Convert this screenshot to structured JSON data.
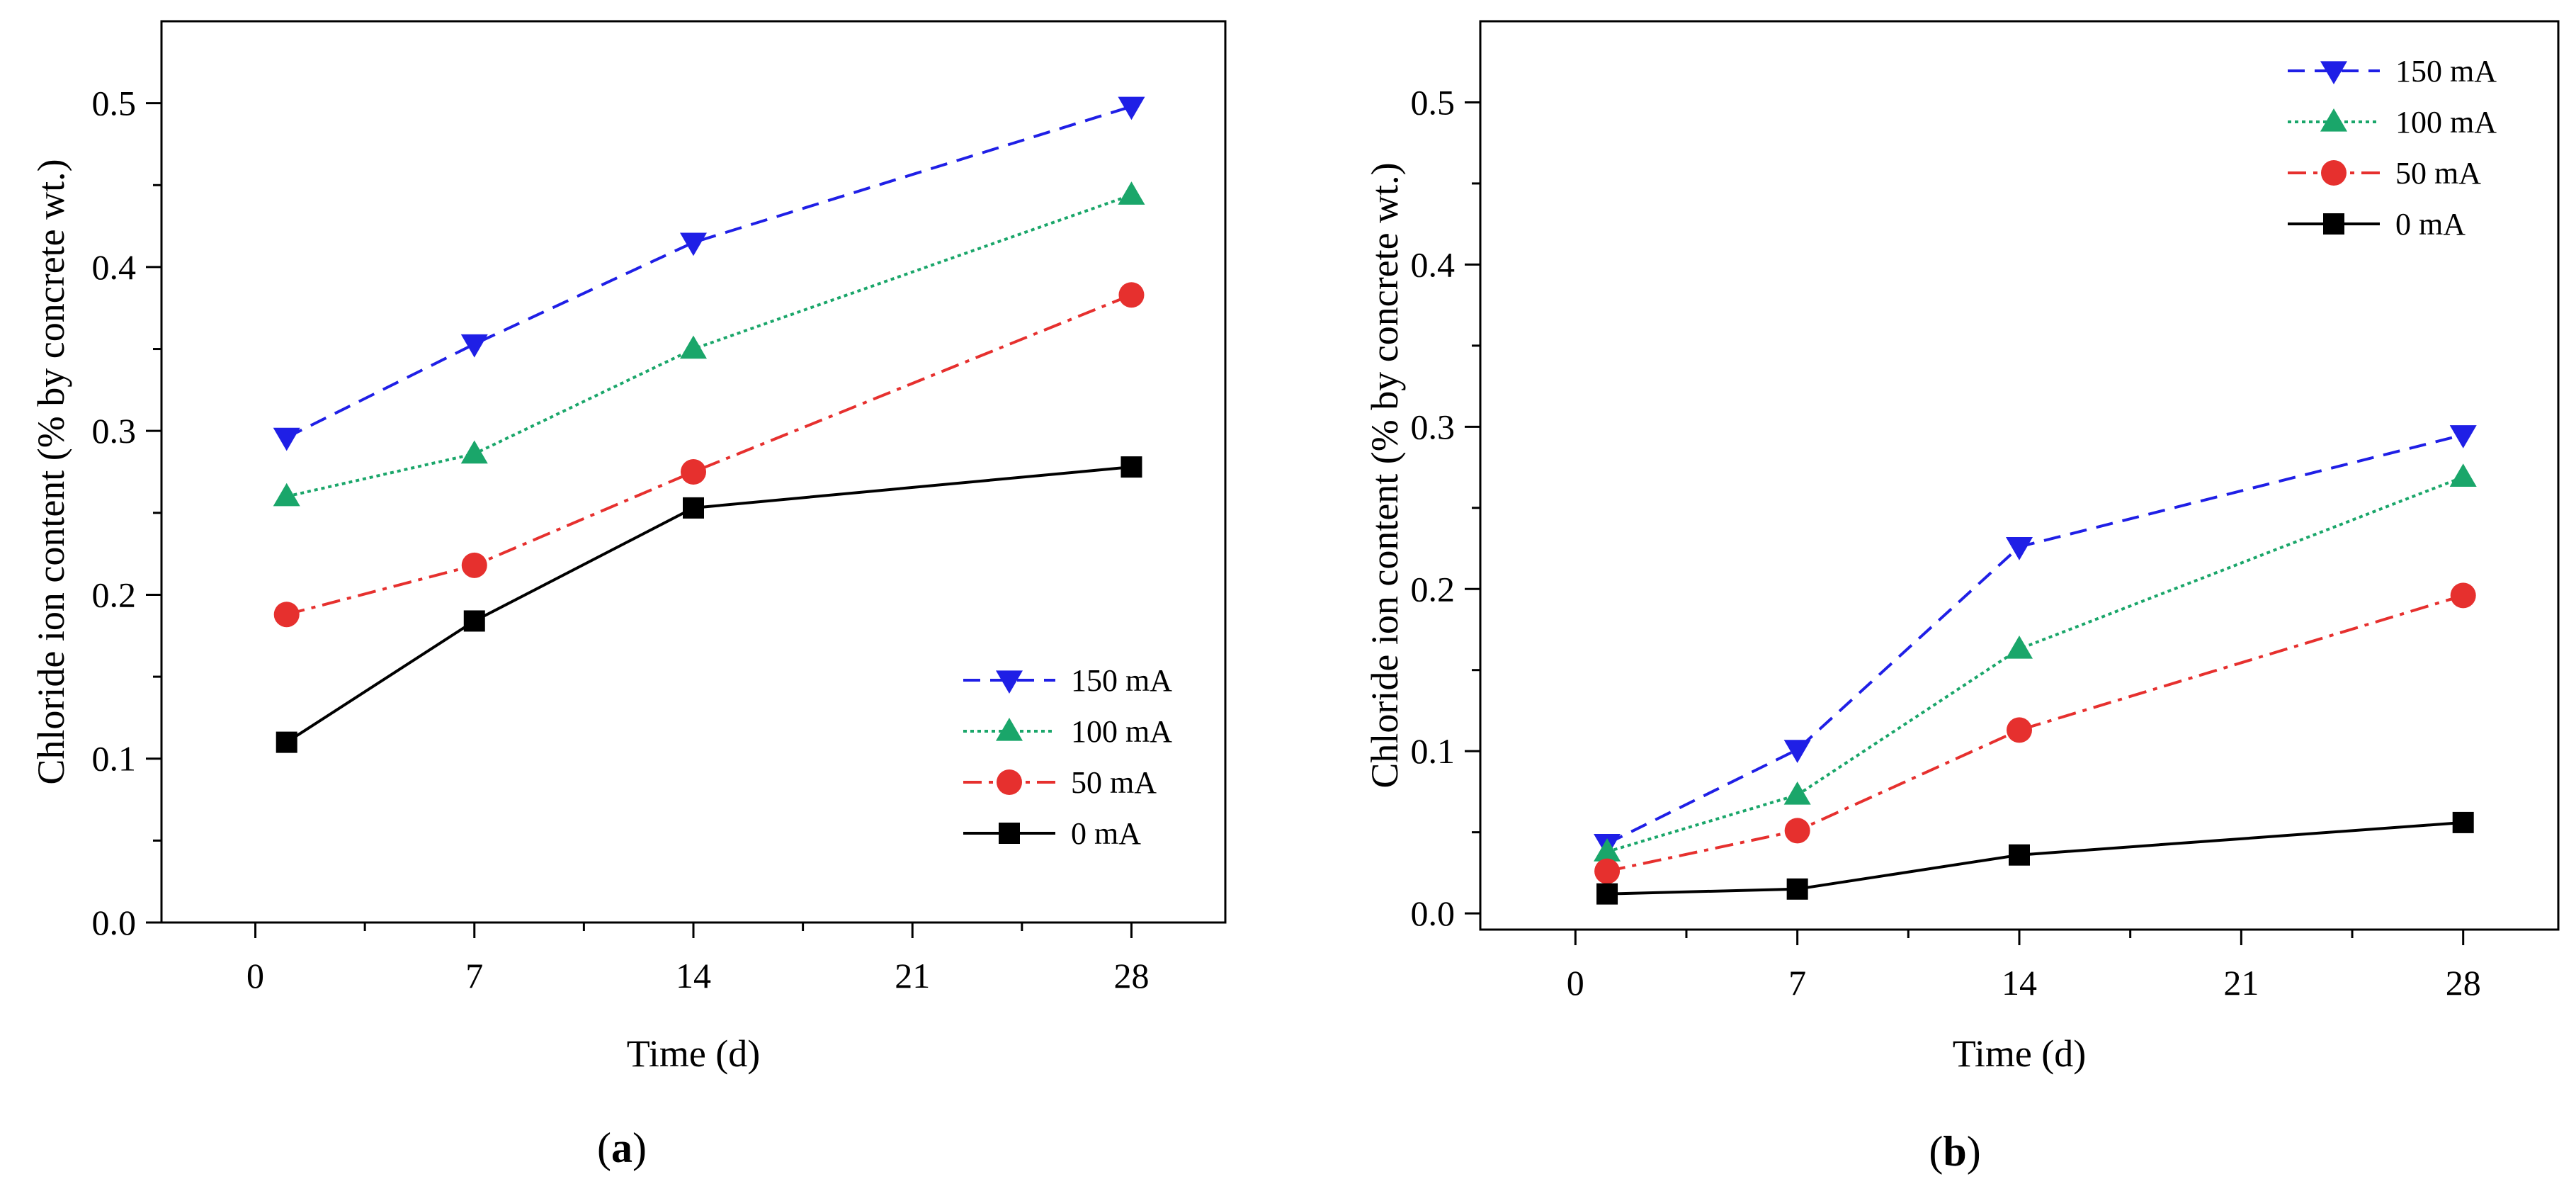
{
  "chart_data": [
    {
      "type": "line",
      "panel_label": "a",
      "xlabel": "Time  (d)",
      "ylabel": "Chloride ion content (% by concrete wt.)",
      "xlim": [
        -3,
        31
      ],
      "ylim": [
        0,
        0.55
      ],
      "xticks": [
        "0",
        "7",
        "14",
        "21",
        "28"
      ],
      "yticks": [
        "0.0",
        "0.1",
        "0.2",
        "0.3",
        "0.4",
        "0.5"
      ],
      "legend_position": "bottom-right",
      "x": [
        1,
        7,
        14,
        28
      ],
      "series": [
        {
          "name": "150 mA",
          "values": [
            0.296,
            0.353,
            0.415,
            0.498
          ],
          "color": "#1f1fe6",
          "dash": "dashed",
          "marker": "triangle-down"
        },
        {
          "name": "100 mA",
          "values": [
            0.26,
            0.286,
            0.35,
            0.444
          ],
          "color": "#1aa66a",
          "dash": "dotted",
          "marker": "triangle-up"
        },
        {
          "name": "50 mA",
          "values": [
            0.188,
            0.218,
            0.275,
            0.383
          ],
          "color": "#e6302e",
          "dash": "dash-dot",
          "marker": "circle"
        },
        {
          "name": "0 mA",
          "values": [
            0.11,
            0.184,
            0.253,
            0.278
          ],
          "color": "#000000",
          "dash": "solid",
          "marker": "square"
        }
      ]
    },
    {
      "type": "line",
      "panel_label": "b",
      "xlabel": "Time  (d)",
      "ylabel": "Chloride ion content (% by concrete wt.)",
      "xlim": [
        -3,
        31
      ],
      "ylim": [
        -0.01,
        0.55
      ],
      "xticks": [
        "0",
        "7",
        "14",
        "21",
        "28"
      ],
      "yticks": [
        "0.0",
        "0.1",
        "0.2",
        "0.3",
        "0.4",
        "0.5"
      ],
      "legend_position": "top-left",
      "x": [
        1,
        7,
        14,
        28
      ],
      "series": [
        {
          "name": "150 mA",
          "values": [
            0.043,
            0.101,
            0.226,
            0.295
          ],
          "color": "#1f1fe6",
          "dash": "dashed",
          "marker": "triangle-down"
        },
        {
          "name": "100 mA",
          "values": [
            0.038,
            0.073,
            0.163,
            0.269
          ],
          "color": "#1aa66a",
          "dash": "dotted",
          "marker": "triangle-up"
        },
        {
          "name": "50 mA",
          "values": [
            0.026,
            0.051,
            0.113,
            0.196
          ],
          "color": "#e6302e",
          "dash": "dash-dot",
          "marker": "circle"
        },
        {
          "name": "0 mA",
          "values": [
            0.012,
            0.015,
            0.036,
            0.056
          ],
          "color": "#000000",
          "dash": "solid",
          "marker": "square"
        }
      ]
    }
  ]
}
